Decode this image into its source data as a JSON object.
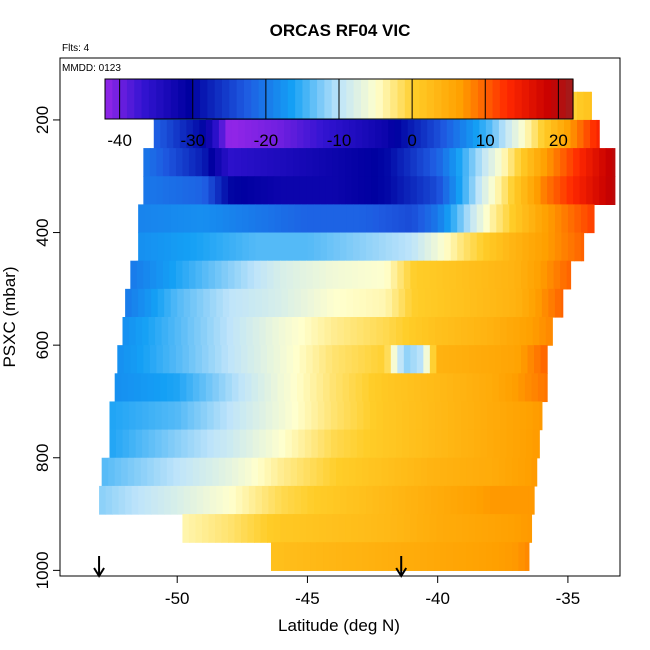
{
  "chart_data": {
    "type": "heatmap",
    "title": "ORCAS RF04 VIC",
    "annotations": {
      "flights": "Flts: 4",
      "date": "MMDD: 0123"
    },
    "xlabel": "Latitude (deg N)",
    "ylabel": "PSXC (mbar)",
    "xlim": [
      -54.5,
      -33
    ],
    "ylim": [
      1010,
      90
    ],
    "x_ticks": [
      -50,
      -45,
      -40,
      -35
    ],
    "x_tick_labels": [
      "-50",
      "-45",
      "-40",
      "-35"
    ],
    "y_ticks": [
      200,
      400,
      600,
      800,
      1000
    ],
    "y_tick_labels": [
      "200",
      "400",
      "600",
      "800",
      "1000"
    ],
    "colorbar": {
      "range": [
        -42,
        22
      ],
      "ticks": [
        -40,
        -30,
        -20,
        -10,
        0,
        10,
        20
      ],
      "tick_labels": [
        "-40",
        "-30",
        "-20",
        "-10",
        "0",
        "10",
        "20"
      ]
    },
    "value_unit": "VIC",
    "pressure_levels": [
      175,
      225,
      275,
      325,
      375,
      425,
      475,
      525,
      575,
      625,
      675,
      725,
      775,
      825,
      875,
      925,
      975
    ],
    "band_latitude_extents": [
      [
        -50.9,
        -34.1
      ],
      [
        -50.9,
        -33.8
      ],
      [
        -51.3,
        -33.2
      ],
      [
        -51.3,
        -33.2
      ],
      [
        -51.5,
        -34.0
      ],
      [
        -51.5,
        -34.4
      ],
      [
        -51.8,
        -34.9
      ],
      [
        -52.0,
        -35.2
      ],
      [
        -52.1,
        -35.6
      ],
      [
        -52.3,
        -35.8
      ],
      [
        -52.4,
        -35.8
      ],
      [
        -52.6,
        -36.0
      ],
      [
        -52.6,
        -36.1
      ],
      [
        -52.9,
        -36.2
      ],
      [
        -53.0,
        -36.3
      ],
      [
        -49.8,
        -36.4
      ],
      [
        -46.4,
        -36.5
      ]
    ],
    "vertical_profiles": [
      {
        "latitude": -53.0,
        "direction": "down"
      },
      {
        "latitude": -41.4,
        "direction": "down"
      }
    ],
    "pressure_bands": [
      {
        "pressure": 175,
        "points": [
          [
            -50.9,
            -22
          ],
          [
            -49,
            -22
          ],
          [
            -48,
            -36
          ],
          [
            -46,
            -34
          ],
          [
            -44,
            -30
          ],
          [
            -42,
            -24
          ],
          [
            -40,
            -20
          ],
          [
            -38,
            -12
          ],
          [
            -36,
            -4
          ],
          [
            -34.1,
            2
          ]
        ]
      },
      {
        "pressure": 225,
        "points": [
          [
            -50.9,
            -22
          ],
          [
            -49,
            -30
          ],
          [
            -48,
            -42
          ],
          [
            -46,
            -40
          ],
          [
            -44,
            -36
          ],
          [
            -42,
            -32
          ],
          [
            -40,
            -24
          ],
          [
            -38,
            -14
          ],
          [
            -36,
            0
          ],
          [
            -33.8,
            14
          ]
        ]
      },
      {
        "pressure": 275,
        "points": [
          [
            -51.3,
            -20
          ],
          [
            -49,
            -28
          ],
          [
            -48,
            -36
          ],
          [
            -46,
            -34
          ],
          [
            -44,
            -32
          ],
          [
            -42,
            -30
          ],
          [
            -40,
            -22
          ],
          [
            -38,
            -8
          ],
          [
            -36,
            6
          ],
          [
            -33.2,
            20
          ]
        ]
      },
      {
        "pressure": 325,
        "points": [
          [
            -51.3,
            -20
          ],
          [
            -49,
            -22
          ],
          [
            -48,
            -30
          ],
          [
            -46,
            -32
          ],
          [
            -44,
            -32
          ],
          [
            -42,
            -30
          ],
          [
            -40,
            -24
          ],
          [
            -38,
            -6
          ],
          [
            -36,
            8
          ],
          [
            -33.2,
            20
          ]
        ]
      },
      {
        "pressure": 375,
        "points": [
          [
            -51.5,
            -19
          ],
          [
            -49,
            -18
          ],
          [
            -47,
            -20
          ],
          [
            -45,
            -22
          ],
          [
            -43,
            -22
          ],
          [
            -41,
            -24
          ],
          [
            -40,
            -20
          ],
          [
            -38,
            -4
          ],
          [
            -36,
            6
          ],
          [
            -34,
            12
          ]
        ]
      },
      {
        "pressure": 425,
        "points": [
          [
            -51.5,
            -18
          ],
          [
            -49,
            -16
          ],
          [
            -47,
            -14
          ],
          [
            -45,
            -14
          ],
          [
            -43,
            -12
          ],
          [
            -41,
            -10
          ],
          [
            -39,
            -2
          ],
          [
            -37,
            4
          ],
          [
            -34.4,
            10
          ]
        ]
      },
      {
        "pressure": 475,
        "points": [
          [
            -51.8,
            -20
          ],
          [
            -50,
            -16
          ],
          [
            -48,
            -12
          ],
          [
            -46,
            -8
          ],
          [
            -44,
            -6
          ],
          [
            -42,
            -5
          ],
          [
            -41,
            0
          ],
          [
            -39,
            2
          ],
          [
            -37,
            4
          ],
          [
            -34.9,
            10
          ]
        ]
      },
      {
        "pressure": 525,
        "points": [
          [
            -52.0,
            -20
          ],
          [
            -50,
            -14
          ],
          [
            -48,
            -10
          ],
          [
            -46,
            -8
          ],
          [
            -44,
            -5
          ],
          [
            -42,
            -4
          ],
          [
            -41,
            0
          ],
          [
            -39,
            2
          ],
          [
            -37,
            4
          ],
          [
            -35.2,
            10
          ]
        ]
      },
      {
        "pressure": 575,
        "points": [
          [
            -52.1,
            -18
          ],
          [
            -50,
            -14
          ],
          [
            -48,
            -10
          ],
          [
            -46,
            -6
          ],
          [
            -44,
            -3
          ],
          [
            -42,
            -1
          ],
          [
            -40,
            2
          ],
          [
            -38,
            4
          ],
          [
            -35.6,
            8
          ]
        ]
      },
      {
        "pressure": 625,
        "points": [
          [
            -52.3,
            -18
          ],
          [
            -50,
            -14
          ],
          [
            -48,
            -10
          ],
          [
            -46,
            -6
          ],
          [
            -44,
            -2
          ],
          [
            -42,
            0
          ],
          [
            -41.3,
            -12
          ],
          [
            -40.6,
            -10
          ],
          [
            -40,
            4
          ],
          [
            -37,
            6
          ],
          [
            -35.8,
            10
          ]
        ]
      },
      {
        "pressure": 675,
        "points": [
          [
            -52.4,
            -18
          ],
          [
            -50,
            -16
          ],
          [
            -48,
            -11
          ],
          [
            -46,
            -6
          ],
          [
            -44,
            -2
          ],
          [
            -42,
            1
          ],
          [
            -40,
            3
          ],
          [
            -38,
            5
          ],
          [
            -35.8,
            9
          ]
        ]
      },
      {
        "pressure": 725,
        "points": [
          [
            -52.6,
            -16
          ],
          [
            -50,
            -14
          ],
          [
            -48,
            -10
          ],
          [
            -46,
            -6
          ],
          [
            -44,
            -2
          ],
          [
            -42,
            1
          ],
          [
            -40,
            3
          ],
          [
            -38,
            5
          ],
          [
            -36,
            7
          ]
        ]
      },
      {
        "pressure": 775,
        "points": [
          [
            -52.6,
            -16
          ],
          [
            -50,
            -12
          ],
          [
            -48,
            -9
          ],
          [
            -46,
            -5
          ],
          [
            -44,
            -1
          ],
          [
            -42,
            1
          ],
          [
            -40,
            3
          ],
          [
            -38,
            5
          ],
          [
            -36.1,
            7
          ]
        ]
      },
      {
        "pressure": 825,
        "points": [
          [
            -52.9,
            -14
          ],
          [
            -50,
            -10
          ],
          [
            -48,
            -7
          ],
          [
            -46,
            -3
          ],
          [
            -44,
            0
          ],
          [
            -42,
            2
          ],
          [
            -40,
            4
          ],
          [
            -38,
            5
          ],
          [
            -36.2,
            7
          ]
        ]
      },
      {
        "pressure": 875,
        "points": [
          [
            -53.0,
            -12
          ],
          [
            -50,
            -8
          ],
          [
            -48,
            -5
          ],
          [
            -46,
            -1
          ],
          [
            -44,
            1
          ],
          [
            -42,
            3
          ],
          [
            -40,
            5
          ],
          [
            -38,
            7
          ],
          [
            -36.3,
            7
          ]
        ]
      },
      {
        "pressure": 925,
        "points": [
          [
            -49.8,
            -4
          ],
          [
            -48,
            -2
          ],
          [
            -46,
            1
          ],
          [
            -44,
            2
          ],
          [
            -42,
            3
          ],
          [
            -40,
            5
          ],
          [
            -38,
            6
          ],
          [
            -36.4,
            7
          ]
        ]
      },
      {
        "pressure": 975,
        "points": [
          [
            -46.4,
            2
          ],
          [
            -45,
            3
          ],
          [
            -43,
            4
          ],
          [
            -41,
            5
          ],
          [
            -39,
            6
          ],
          [
            -37,
            7
          ],
          [
            -36.5,
            8
          ]
        ]
      }
    ]
  }
}
